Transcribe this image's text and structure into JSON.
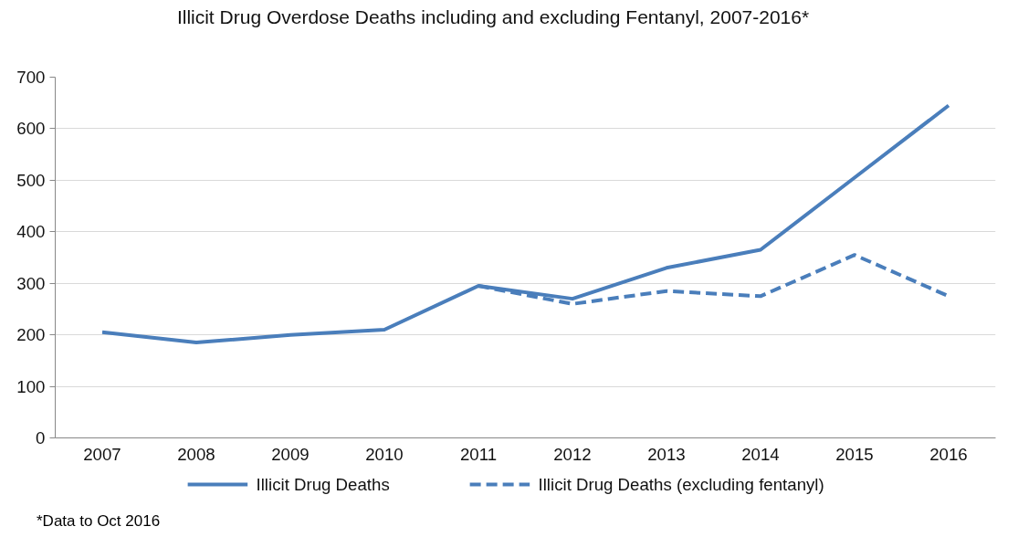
{
  "chart_data": {
    "type": "line",
    "title": "Illicit Drug Overdose Deaths including and excluding Fentanyl, 2007-2016*",
    "categories": [
      "2007",
      "2008",
      "2009",
      "2010",
      "2011",
      "2012",
      "2013",
      "2014",
      "2015",
      "2016"
    ],
    "series": [
      {
        "name": "Illicit Drug Deaths",
        "color": "#4a7ebb",
        "line_style": "solid",
        "values": [
          205,
          185,
          200,
          210,
          295,
          270,
          330,
          365,
          505,
          645
        ]
      },
      {
        "name": "Illicit Drug Deaths (excluding fentanyl)",
        "color": "#4a7ebb",
        "line_style": "dashed",
        "values": [
          null,
          null,
          null,
          null,
          295,
          260,
          285,
          275,
          355,
          275
        ]
      }
    ],
    "ylim": [
      0,
      700
    ],
    "yticks": [
      0,
      100,
      200,
      300,
      400,
      500,
      600,
      700
    ],
    "grid": "y",
    "legend": "bottom",
    "marker": "none",
    "annotations": [
      "*Data to Oct 2016"
    ]
  }
}
